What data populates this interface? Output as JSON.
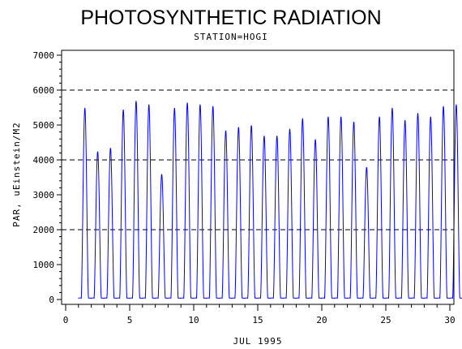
{
  "chart_data": {
    "type": "line",
    "title": "PHOTOSYNTHETIC RADIATION",
    "subtitle": "STATION=HOGI",
    "xlabel": "JUL 1995",
    "ylabel": "PAR, uEinstein/M2",
    "xlim": [
      0,
      30
    ],
    "ylim": [
      0,
      7000
    ],
    "x_ticks": [
      0,
      5,
      10,
      15,
      20,
      25,
      30
    ],
    "y_ticks": [
      0,
      1000,
      2000,
      3000,
      4000,
      5000,
      6000,
      7000
    ],
    "y_minor_step": 200,
    "x_minor_step": 1,
    "reference_lines": [
      2000,
      4000,
      6000
    ],
    "grid": false,
    "series": [
      {
        "color": "#0000ff",
        "daily_peaks": [
          {
            "day": 1,
            "peak": 5450
          },
          {
            "day": 2,
            "peak": 4200
          },
          {
            "day": 3,
            "peak": 4300
          },
          {
            "day": 4,
            "peak": 5400
          },
          {
            "day": 5,
            "peak": 5650
          },
          {
            "day": 6,
            "peak": 5550
          },
          {
            "day": 7,
            "peak": 3550
          },
          {
            "day": 8,
            "peak": 5450
          },
          {
            "day": 9,
            "peak": 5600
          },
          {
            "day": 10,
            "peak": 5550
          },
          {
            "day": 11,
            "peak": 5500
          },
          {
            "day": 12,
            "peak": 4800
          },
          {
            "day": 13,
            "peak": 4900
          },
          {
            "day": 14,
            "peak": 4950
          },
          {
            "day": 15,
            "peak": 4650
          },
          {
            "day": 16,
            "peak": 4650
          },
          {
            "day": 17,
            "peak": 4850
          },
          {
            "day": 18,
            "peak": 5150
          },
          {
            "day": 19,
            "peak": 4550
          },
          {
            "day": 20,
            "peak": 5200
          },
          {
            "day": 21,
            "peak": 5200
          },
          {
            "day": 22,
            "peak": 5050
          },
          {
            "day": 23,
            "peak": 3750
          },
          {
            "day": 24,
            "peak": 5200
          },
          {
            "day": 25,
            "peak": 5450
          },
          {
            "day": 26,
            "peak": 5100
          },
          {
            "day": 27,
            "peak": 5300
          },
          {
            "day": 28,
            "peak": 5200
          },
          {
            "day": 29,
            "peak": 5500
          },
          {
            "day": 30,
            "peak": 5550
          }
        ]
      }
    ]
  }
}
